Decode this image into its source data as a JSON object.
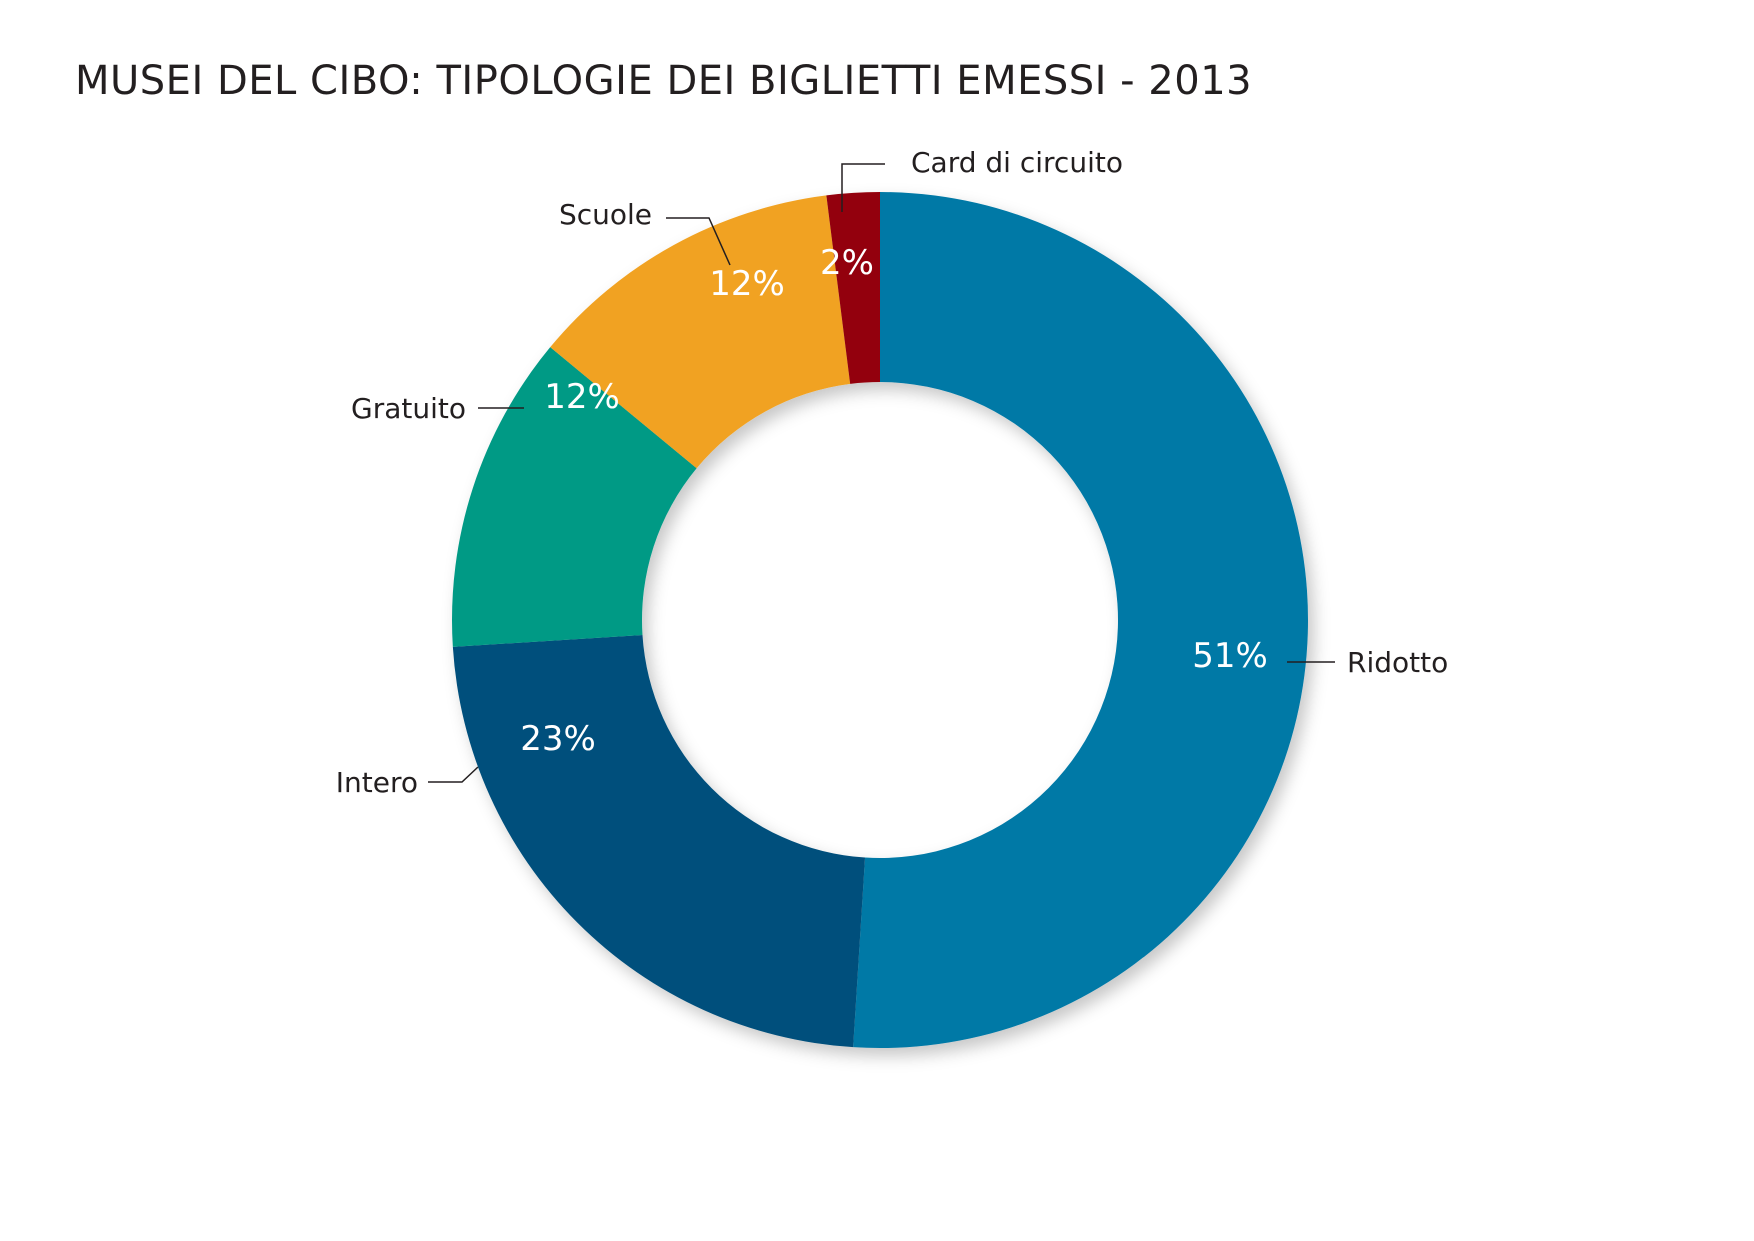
{
  "chart_data": {
    "type": "pie",
    "title": "MUSEI DEL CIBO: TIPOLOGIE DEI BIGLIETTI EMESSI - 2013",
    "slices": [
      {
        "name": "Ridotto",
        "value": 51,
        "label": "51%",
        "color": "#0279a6"
      },
      {
        "name": "Intero",
        "value": 23,
        "label": "23%",
        "color": "#05507b"
      },
      {
        "name": "Gratuito",
        "value": 12,
        "label": "12%",
        "color": "#029a85"
      },
      {
        "name": "Scuole",
        "value": 12,
        "label": "12%",
        "color": "#f1a220"
      },
      {
        "name": "Card di circuito",
        "value": 2,
        "label": "2%",
        "color": "#930009"
      }
    ]
  }
}
